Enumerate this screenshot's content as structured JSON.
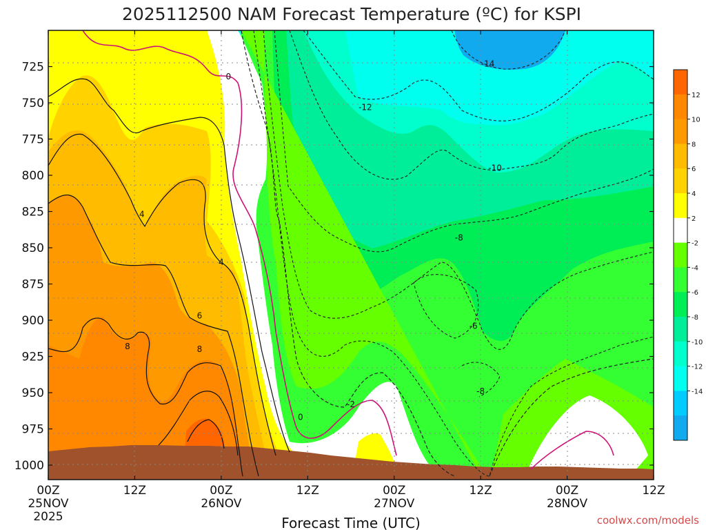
{
  "chart_data": {
    "type": "contour",
    "title": "2025112500 NAM Forecast Temperature (ºC) for KSPI",
    "xlabel": "Forecast Time (UTC)",
    "ylabel": "",
    "credit": "coolwx.com/models",
    "y_axis": {
      "ticks": [
        725,
        750,
        775,
        800,
        825,
        850,
        875,
        900,
        925,
        950,
        975,
        1000
      ],
      "range": [
        700,
        1010
      ],
      "unit": "hPa"
    },
    "x_axis": {
      "range_hours": [
        0,
        84
      ],
      "ticks": [
        {
          "hour": 0,
          "lines": [
            "00Z",
            "25NOV",
            "2025"
          ]
        },
        {
          "hour": 12,
          "lines": [
            "12Z"
          ]
        },
        {
          "hour": 24,
          "lines": [
            "00Z",
            "26NOV"
          ]
        },
        {
          "hour": 36,
          "lines": [
            "12Z"
          ]
        },
        {
          "hour": 48,
          "lines": [
            "00Z",
            "27NOV"
          ]
        },
        {
          "hour": 60,
          "lines": [
            "12Z"
          ]
        },
        {
          "hour": 72,
          "lines": [
            "00Z",
            "28NOV"
          ]
        },
        {
          "hour": 84,
          "lines": [
            "12Z"
          ]
        }
      ]
    },
    "colorbar": {
      "levels": [
        12,
        10,
        8,
        6,
        4,
        2,
        -2,
        -4,
        -6,
        -8,
        -10,
        -12,
        -14
      ],
      "colors": [
        "#ff6600",
        "#ff8800",
        "#ff9900",
        "#ffbb00",
        "#ffd200",
        "#ffff00",
        "#ffffff",
        "#66ff00",
        "#33ff33",
        "#00ee55",
        "#00ee99",
        "#00ffcc",
        "#00ffee",
        "#00ccff",
        "#11aaee"
      ]
    },
    "contour_labels": [
      {
        "text": "0",
        "hour": 25,
        "p": 732
      },
      {
        "text": "-14",
        "hour": 61,
        "p": 723
      },
      {
        "text": "-12",
        "hour": 44,
        "p": 753
      },
      {
        "text": "-10",
        "hour": 62,
        "p": 795
      },
      {
        "text": "4",
        "hour": 13,
        "p": 827
      },
      {
        "text": "-8",
        "hour": 57,
        "p": 843
      },
      {
        "text": "4",
        "hour": 24,
        "p": 860
      },
      {
        "text": "6",
        "hour": 21,
        "p": 897
      },
      {
        "text": "-6",
        "hour": 59,
        "p": 904
      },
      {
        "text": "8",
        "hour": 11,
        "p": 918
      },
      {
        "text": "8",
        "hour": 21,
        "p": 920
      },
      {
        "text": "-8",
        "hour": 60,
        "p": 949
      },
      {
        "text": "-2",
        "hour": 42,
        "p": 958
      },
      {
        "text": "0",
        "hour": 35,
        "p": 967
      }
    ]
  }
}
